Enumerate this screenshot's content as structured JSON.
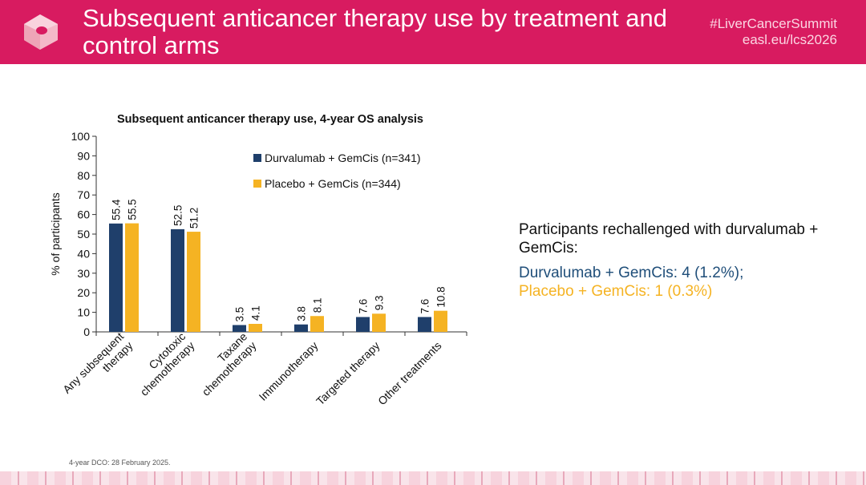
{
  "header": {
    "title": "Subsequent anticancer therapy use by treatment and control arms",
    "hashtag": "#LiverCancerSummit",
    "url": "easl.eu/lcs2026"
  },
  "chart_data": {
    "type": "bar",
    "title": "Subsequent anticancer therapy use, 4-year OS analysis",
    "ylabel": "% of participants",
    "xlabel": "",
    "ylim": [
      0,
      100
    ],
    "yticks": [
      0,
      10,
      20,
      30,
      40,
      50,
      60,
      70,
      80,
      90,
      100
    ],
    "categories": [
      [
        "Any subsequent",
        "therapy"
      ],
      [
        "Cytotoxic",
        "chemotherapy"
      ],
      [
        "Taxane",
        "chemotherapy"
      ],
      [
        "Immunotherapy"
      ],
      [
        "Targeted therapy"
      ],
      [
        "Other treatments"
      ]
    ],
    "series": [
      {
        "name": "Durvalumab + GemCis (n=341)",
        "color": "#1f3f6b",
        "values": [
          55.4,
          52.5,
          3.5,
          3.8,
          7.6,
          7.6
        ],
        "labels": [
          "55.4",
          "52.5",
          "3.5",
          "3.8",
          "7.6",
          "7.6"
        ]
      },
      {
        "name": "Placebo + GemCis (n=344)",
        "color": "#f5b323",
        "values": [
          55.5,
          51.2,
          4.1,
          8.1,
          9.3,
          10.8
        ],
        "labels": [
          "55.5",
          "51.2",
          "4.1",
          "8.1",
          "9.3",
          "10.8"
        ]
      }
    ],
    "legend_position": "top-right"
  },
  "info": {
    "heading": "Participants rechallenged with durvalumab + GemCis:",
    "durvalumab": "Durvalumab + GemCis: 4 (1.2%);",
    "placebo": "Placebo + GemCis: 1 (0.3%)"
  },
  "footnote": "4-year DCO: 28 February 2025."
}
